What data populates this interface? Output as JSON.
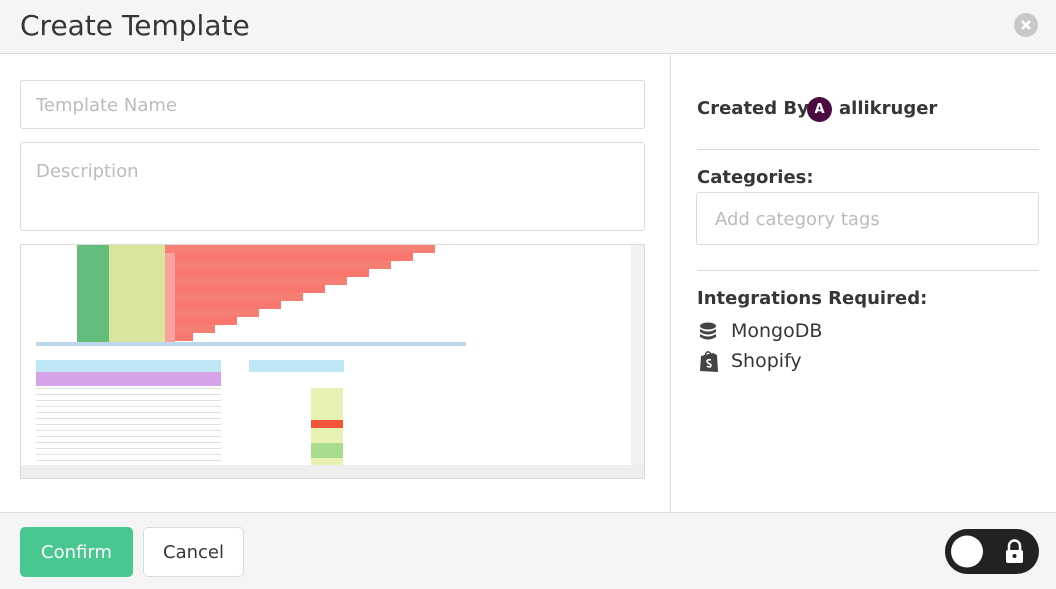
{
  "header": {
    "title": "Create Template"
  },
  "form": {
    "template_name_placeholder": "Template Name",
    "description_placeholder": "Description"
  },
  "sidebar": {
    "created_by_label": "Created By:",
    "author_initial": "A",
    "author": "allikruger",
    "categories_label": "Categories:",
    "categories_placeholder": "Add category tags",
    "integrations_label": "Integrations Required:",
    "integrations": [
      "MongoDB",
      "Shopify"
    ]
  },
  "footer": {
    "confirm": "Confirm",
    "cancel": "Cancel"
  }
}
